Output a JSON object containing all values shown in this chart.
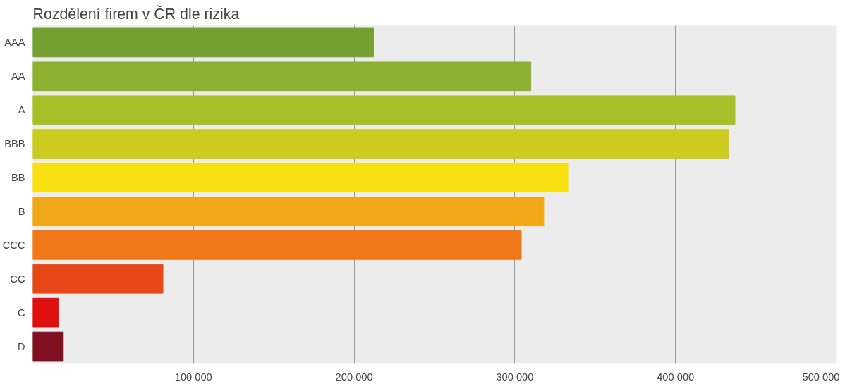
{
  "chart_data": {
    "type": "bar",
    "orientation": "horizontal",
    "title": "Rozdělení firem v ČR dle rizika",
    "categories": [
      "AAA",
      "AA",
      "A",
      "BBB",
      "BB",
      "B",
      "CCC",
      "CC",
      "C",
      "D"
    ],
    "values": [
      212000,
      310000,
      437000,
      433000,
      333000,
      318000,
      304000,
      81000,
      16000,
      19000
    ],
    "colors": [
      "#73a030",
      "#8cb030",
      "#a8c028",
      "#cccc20",
      "#f8e010",
      "#f0a818",
      "#f07818",
      "#e84818",
      "#e01010",
      "#801020"
    ],
    "xlim": [
      0,
      500000
    ],
    "xticks": [
      {
        "value": 100000,
        "label": "100 000"
      },
      {
        "value": 200000,
        "label": "200 000"
      },
      {
        "value": 300000,
        "label": "300 000"
      },
      {
        "value": 400000,
        "label": "400 000"
      },
      {
        "value": 500000,
        "label": "500 000"
      }
    ],
    "grid": "x"
  }
}
